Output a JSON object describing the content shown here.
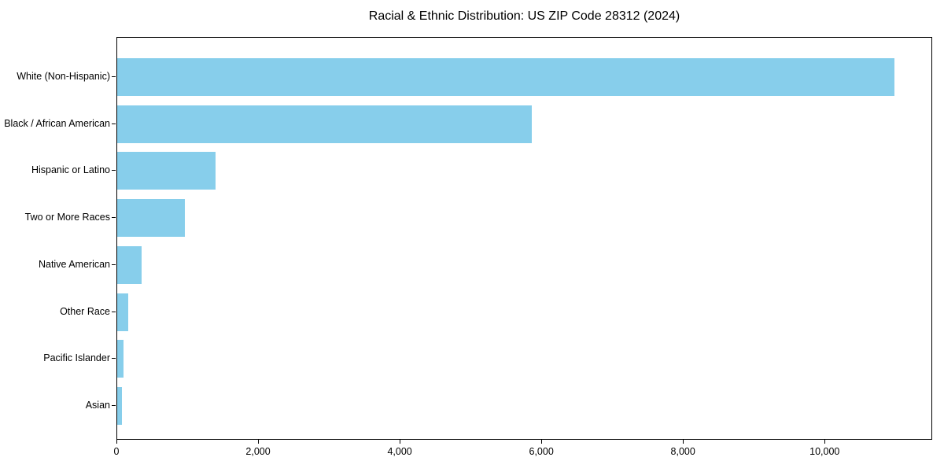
{
  "chart_data": {
    "type": "bar",
    "orientation": "horizontal",
    "title": "Racial & Ethnic Distribution: US ZIP Code 28312 (2024)",
    "categories": [
      "White (Non-Hispanic)",
      "Black / African American",
      "Hispanic or Latino",
      "Two or More Races",
      "Native American",
      "Other Race",
      "Pacific Islander",
      "Asian"
    ],
    "values": [
      10970,
      5855,
      1390,
      955,
      345,
      150,
      85,
      70
    ],
    "xlabel": "",
    "ylabel": "",
    "xlim": [
      0,
      11519
    ],
    "xticks": [
      0,
      2000,
      4000,
      6000,
      8000,
      10000
    ],
    "xtick_labels": [
      "0",
      "2,000",
      "4,000",
      "6,000",
      "8,000",
      "10,000"
    ],
    "bar_color": "#87CEEB",
    "grid": false,
    "legend": null
  }
}
